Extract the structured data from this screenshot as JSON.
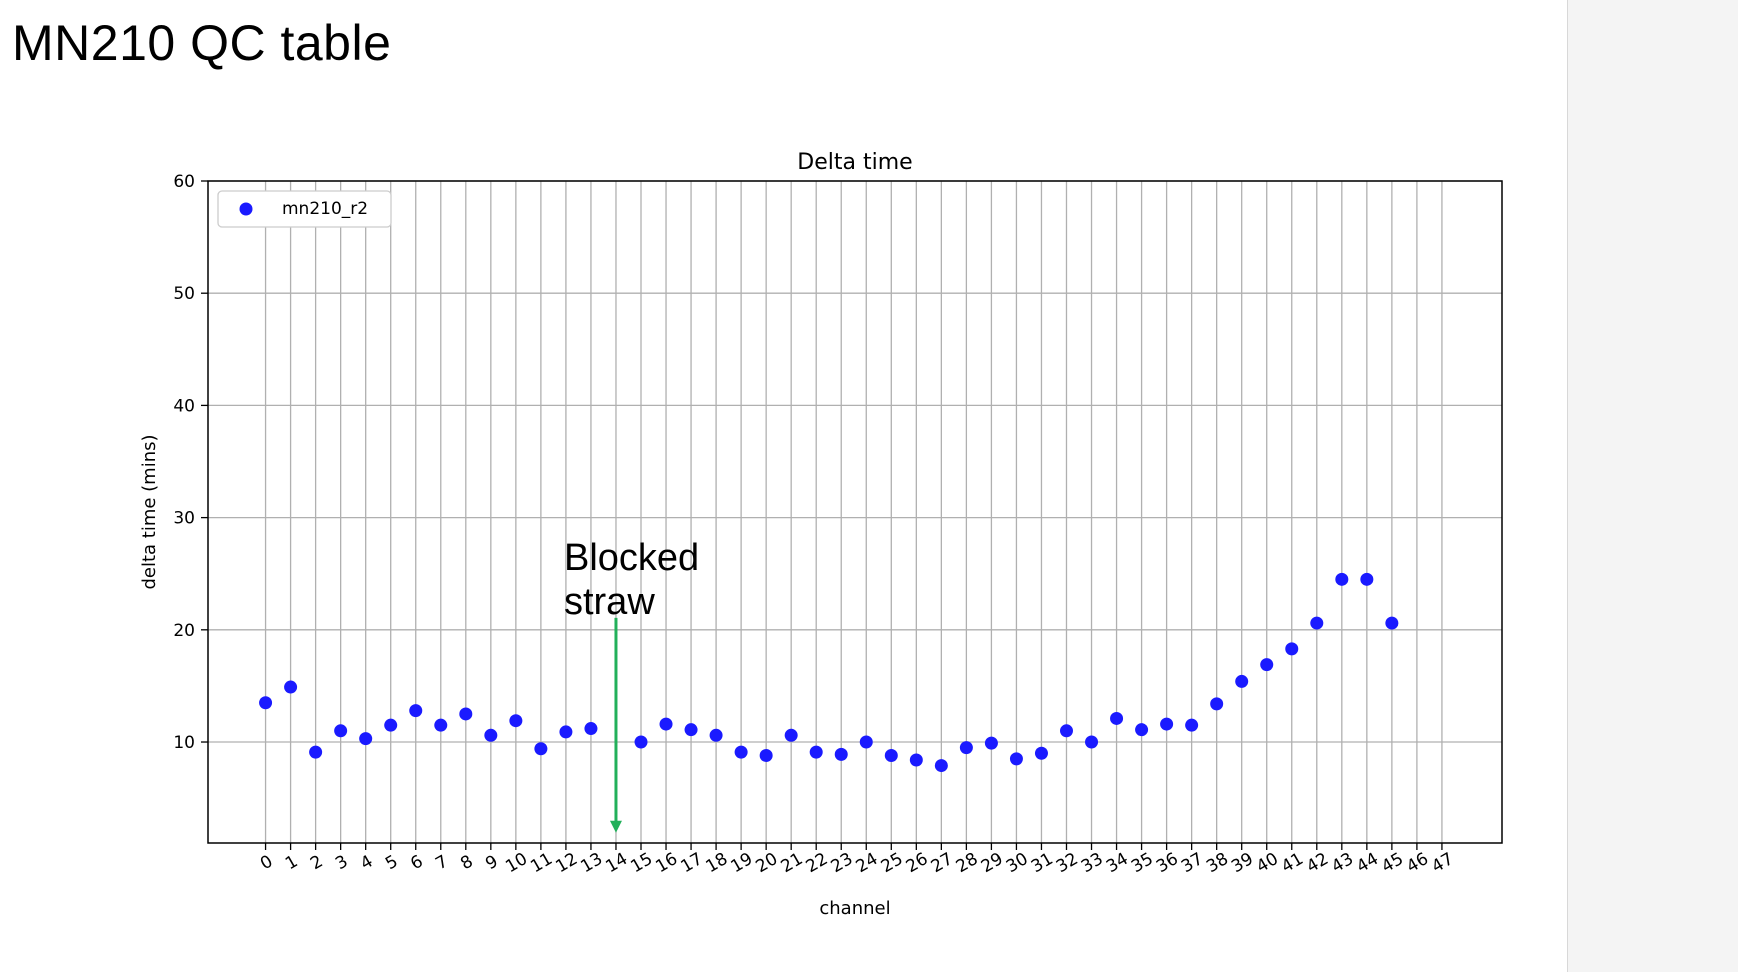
{
  "slide": {
    "title": "MN210 QC table"
  },
  "colors": {
    "marker": "#1a1aff",
    "arrow": "#22b05a",
    "grid": "#b0b0b0"
  },
  "chart_data": {
    "type": "scatter",
    "title": "Delta time",
    "xlabel": "channel",
    "ylabel": "delta time (mins)",
    "grid": true,
    "legend_position": "top-left",
    "x_ticks": [
      0,
      1,
      2,
      3,
      4,
      5,
      6,
      7,
      8,
      9,
      10,
      11,
      12,
      13,
      14,
      15,
      16,
      17,
      18,
      19,
      20,
      21,
      22,
      23,
      24,
      25,
      26,
      27,
      28,
      29,
      30,
      31,
      32,
      33,
      34,
      35,
      36,
      37,
      38,
      39,
      40,
      41,
      42,
      43,
      44,
      45,
      46,
      47
    ],
    "xlim": [
      -2.3,
      49.4
    ],
    "yticks": [
      10,
      20,
      30,
      40,
      50,
      60
    ],
    "ylim": [
      1,
      60
    ],
    "series": [
      {
        "name": "mn210_r2",
        "x": [
          0,
          1,
          2,
          3,
          4,
          5,
          6,
          7,
          8,
          9,
          10,
          11,
          12,
          13,
          15,
          16,
          17,
          18,
          19,
          20,
          21,
          22,
          23,
          24,
          25,
          26,
          27,
          28,
          29,
          30,
          31,
          32,
          33,
          34,
          35,
          36,
          37,
          38,
          39,
          40,
          41,
          42,
          43,
          44,
          45
        ],
        "y": [
          13.5,
          14.9,
          9.1,
          11.0,
          10.3,
          11.5,
          12.8,
          11.5,
          12.5,
          10.6,
          11.9,
          9.4,
          10.9,
          11.2,
          10.0,
          11.6,
          11.1,
          10.6,
          9.1,
          8.8,
          10.6,
          9.1,
          8.9,
          10.0,
          8.8,
          8.4,
          7.9,
          9.5,
          9.9,
          8.5,
          9.0,
          11.0,
          10.0,
          12.1,
          11.1,
          11.6,
          11.5,
          13.4,
          15.4,
          16.9,
          18.3,
          20.6,
          24.5,
          24.5,
          20.6
        ]
      }
    ],
    "annotations": [
      {
        "text_line1": "Blocked",
        "text_line2": "straw",
        "arrow_x": 14,
        "arrow_from_y": 20.0,
        "arrow_to_y": 2.0
      }
    ]
  }
}
